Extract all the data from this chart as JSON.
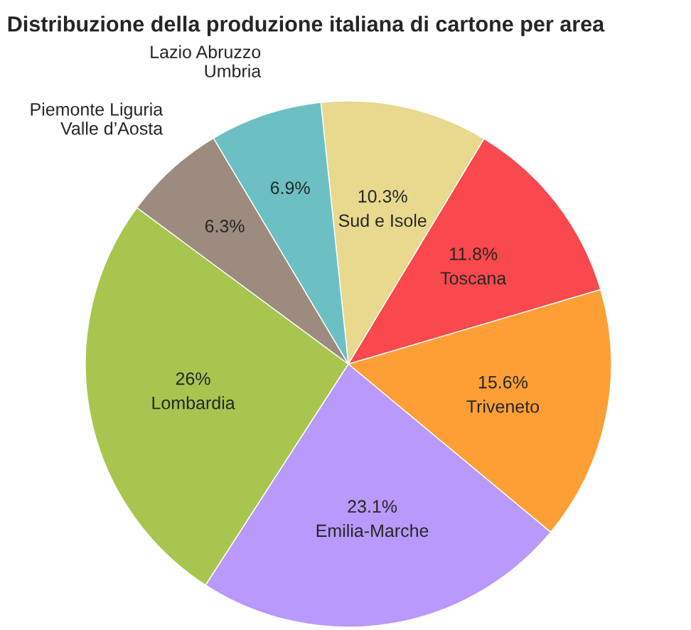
{
  "chart_data": {
    "type": "pie",
    "title": "Distribuzione della produzione italiana di cartone per area",
    "categories": [
      "Sud e Isole",
      "Toscana",
      "Triveneto",
      "Emilia-Marche",
      "Lombardia",
      "Piemonte Liguria\nValle d’Aosta",
      "Lazio Abruzzo\nUmbria"
    ],
    "values": [
      10.3,
      11.8,
      15.6,
      23.1,
      26,
      6.3,
      6.9
    ],
    "value_labels": [
      "10.3%",
      "11.8%",
      "15.6%",
      "23.1%",
      "26%",
      "6.3%",
      "6.9%"
    ],
    "colors": [
      "#e8d98f",
      "#f9484e",
      "#fe9f35",
      "#b999fb",
      "#a8c64f",
      "#9c8b7e",
      "#6cc0c4"
    ]
  }
}
